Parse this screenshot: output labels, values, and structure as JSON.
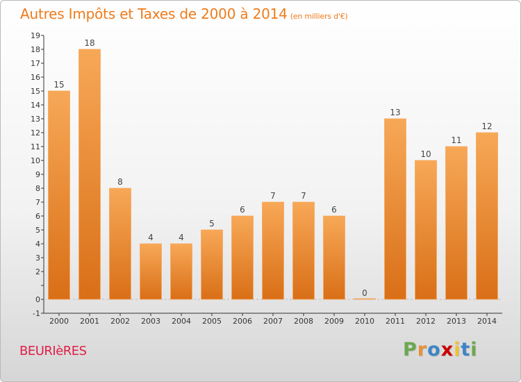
{
  "title": "Autres Impôts et Taxes de 2000 à 2014",
  "unit": "(en milliers d'€)",
  "location": "BEURIèRES",
  "logo": {
    "letters": [
      "P",
      "r",
      "o",
      "x",
      "i",
      "t",
      "i"
    ],
    "colors": [
      "#6aa84f",
      "#e69138",
      "#3d85c6",
      "#cc0000",
      "#f1c232",
      "#3d85c6",
      "#6aa84f"
    ]
  },
  "colors": {
    "bar": "#f08c30",
    "bar_dark": "#d96f17",
    "axis": "#333333",
    "grid": "#bbbbbb"
  },
  "chart_data": {
    "type": "bar",
    "title": "Autres Impôts et Taxes de 2000 à 2014",
    "subtitle": "(en milliers d'€)",
    "categories": [
      "2000",
      "2001",
      "2002",
      "2003",
      "2004",
      "2005",
      "2006",
      "2007",
      "2008",
      "2009",
      "2010",
      "2011",
      "2012",
      "2013",
      "2014"
    ],
    "values": [
      15,
      18,
      8,
      4,
      4,
      5,
      6,
      7,
      7,
      6,
      0,
      13,
      10,
      11,
      12
    ],
    "data_labels": [
      "15",
      "18",
      "8",
      "4",
      "4",
      "5",
      "6",
      "7",
      "7",
      "6",
      "0",
      "13",
      "10",
      "11",
      "12"
    ],
    "y_ticks": [
      "-1",
      "0",
      "",
      "2",
      "3",
      "4",
      "5",
      "6",
      "7",
      "8",
      "9",
      "10",
      "11",
      "12",
      "13",
      "14",
      "15",
      "16",
      "17",
      "18",
      "19"
    ],
    "ylim": [
      -1,
      19
    ],
    "xlabel": "",
    "ylabel": "",
    "grid": false
  }
}
